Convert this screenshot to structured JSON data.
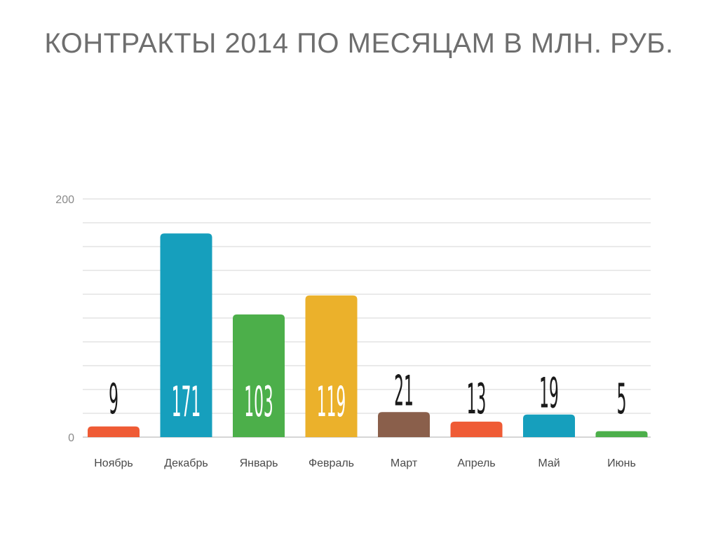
{
  "chart_data": {
    "type": "bar",
    "title": "КОНТРАКТЫ 2014 ПО МЕСЯЦАМ В МЛН. РУБ.",
    "categories": [
      "Ноябрь",
      "Декабрь",
      "Январь",
      "Февраль",
      "Март",
      "Апрель",
      "Май",
      "Июнь"
    ],
    "values": [
      9,
      171,
      103,
      119,
      21,
      13,
      19,
      5
    ],
    "colors": [
      "#ef5b35",
      "#169fbd",
      "#4caf4a",
      "#ebb12b",
      "#8a5f4b",
      "#ef5b35",
      "#169fbd",
      "#4caf4a"
    ],
    "ylim": [
      0,
      200
    ],
    "yticks": [
      0,
      200
    ],
    "grid": true,
    "legend": "none",
    "data_labels": "inside-or-above"
  }
}
